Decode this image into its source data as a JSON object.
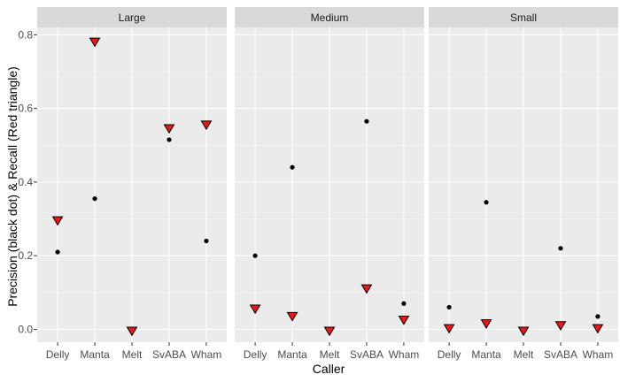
{
  "chart_data": {
    "type": "scatter",
    "title": "",
    "xlabel": "Caller",
    "ylabel": "Precision (black dot) & Recall (Red triangle)",
    "categories": [
      "Delly",
      "Manta",
      "Melt",
      "SvABA",
      "Wham"
    ],
    "ylim": [
      -0.035,
      0.82
    ],
    "y_ticks": [
      0.0,
      0.2,
      0.4,
      0.6,
      0.8
    ],
    "y_tick_labels": [
      "0.0",
      "0.2",
      "0.4",
      "0.6",
      "0.8"
    ],
    "grid": true,
    "legend": "none",
    "colors": {
      "panel_bg": "#ebebeb",
      "strip_bg": "#d9d9d9",
      "grid_major": "#ffffff",
      "precision": "#000000",
      "recall_fill": "#e41a1c",
      "recall_stroke": "#000000"
    },
    "panels": [
      {
        "label": "Large",
        "series": [
          {
            "measure": "precision",
            "shape": "dot",
            "values": [
              0.21,
              0.355,
              null,
              0.515,
              0.24
            ]
          },
          {
            "measure": "recall",
            "shape": "triangle-down",
            "values": [
              0.295,
              0.78,
              -0.005,
              0.545,
              0.555
            ]
          }
        ]
      },
      {
        "label": "Medium",
        "series": [
          {
            "measure": "precision",
            "shape": "dot",
            "values": [
              0.2,
              0.44,
              null,
              0.565,
              0.07
            ]
          },
          {
            "measure": "recall",
            "shape": "triangle-down",
            "values": [
              0.055,
              0.035,
              -0.005,
              0.11,
              0.025
            ]
          }
        ]
      },
      {
        "label": "Small",
        "series": [
          {
            "measure": "precision",
            "shape": "dot",
            "values": [
              0.06,
              0.345,
              null,
              0.22,
              0.035
            ]
          },
          {
            "measure": "recall",
            "shape": "triangle-down",
            "values": [
              0.002,
              0.015,
              -0.005,
              0.01,
              0.002
            ]
          }
        ]
      }
    ]
  }
}
